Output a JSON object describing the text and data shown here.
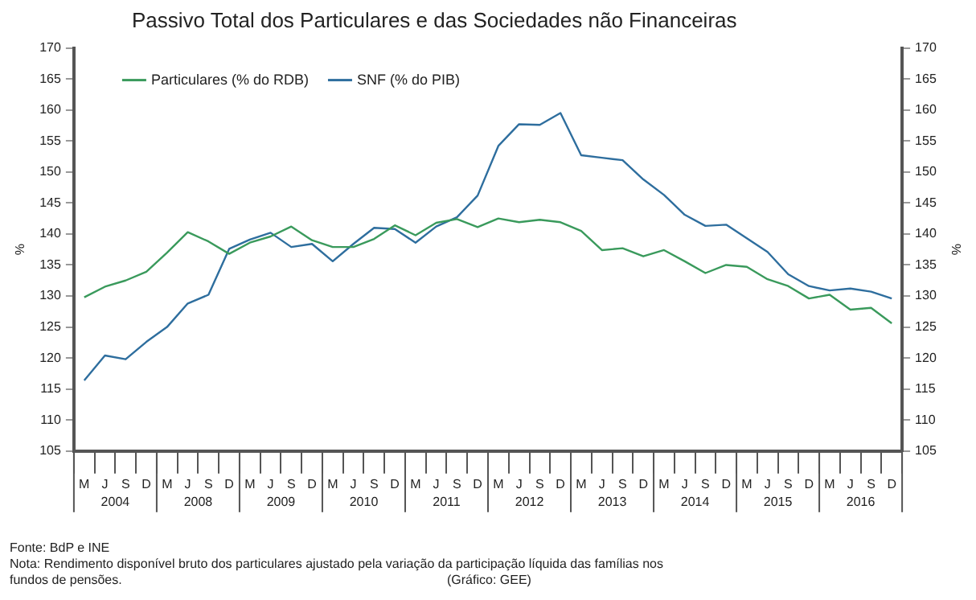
{
  "chart_data": {
    "type": "line",
    "title": "Passivo Total dos Particulares e das Sociedades não Financeiras",
    "ylabel": "%",
    "y2label": "%",
    "categories": [
      "M",
      "J",
      "S",
      "D",
      "M",
      "J",
      "S",
      "D",
      "M",
      "J",
      "S",
      "D",
      "M",
      "J",
      "S",
      "D",
      "M",
      "J",
      "S",
      "D",
      "M",
      "J",
      "S",
      "D",
      "M",
      "J",
      "S",
      "D",
      "M",
      "J",
      "S",
      "D",
      "M",
      "J",
      "S",
      "D",
      "M",
      "J",
      "S",
      "D"
    ],
    "series": [
      {
        "name": "Particulares (% do RDB)",
        "color": "#3a9a5c",
        "values": [
          129.8,
          131.5,
          132.5,
          133.9,
          137.0,
          140.3,
          138.8,
          136.8,
          138.6,
          139.6,
          141.2,
          139.0,
          137.9,
          137.9,
          139.2,
          141.4,
          139.8,
          141.8,
          142.4,
          141.1,
          142.5,
          141.9,
          142.3,
          141.9,
          140.5,
          137.4,
          137.7,
          136.4,
          137.4,
          135.6,
          133.7,
          135.0,
          134.7,
          132.7,
          131.6,
          129.6,
          130.2,
          127.8,
          128.1,
          125.6
        ]
      },
      {
        "name": "SNF (% do PIB)",
        "color": "#2e6e9e",
        "values": [
          116.4,
          120.4,
          119.8,
          122.6,
          125.0,
          128.8,
          130.2,
          137.6,
          139.1,
          140.2,
          137.9,
          138.4,
          135.6,
          138.4,
          141.0,
          140.8,
          138.6,
          141.2,
          142.7,
          146.2,
          154.2,
          157.7,
          157.6,
          159.5,
          152.7,
          152.3,
          151.9,
          148.8,
          146.3,
          143.1,
          141.3,
          141.5,
          139.3,
          137.1,
          133.5,
          131.6,
          130.9,
          131.2,
          130.7,
          129.6
        ]
      }
    ],
    "ylim": [
      105,
      170
    ],
    "yticks": [
      105,
      110,
      115,
      120,
      125,
      130,
      135,
      140,
      145,
      150,
      155,
      160,
      165,
      170
    ],
    "y2lim": [
      105,
      170
    ],
    "y2ticks": [
      105,
      110,
      115,
      120,
      125,
      130,
      135,
      140,
      145,
      150,
      155,
      160,
      165,
      170
    ],
    "grid": false,
    "legend": "top left",
    "marker": "none",
    "line_style": "solid",
    "annotations": [
      "2004",
      "2008",
      "2009",
      "2010",
      "2011",
      "2012",
      "2013",
      "2014",
      "2015",
      "2016",
      "Fonte: BdP e INE",
      "Nota: Rendimento disponível bruto dos particulares ajustado pela variação da participação líquida das famílias nos fundos de pensões.",
      "(Gráfico: GEE)"
    ]
  }
}
